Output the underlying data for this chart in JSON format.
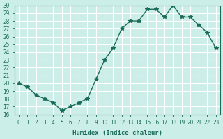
{
  "x": [
    0,
    1,
    2,
    3,
    4,
    5,
    6,
    7,
    8,
    9,
    10,
    11,
    12,
    13,
    14,
    15,
    16,
    17,
    18,
    19,
    20,
    21,
    22,
    23
  ],
  "y": [
    20,
    19.5,
    18.5,
    18,
    17.5,
    16.5,
    17,
    17.5,
    18,
    20.5,
    23,
    24.5,
    27,
    28,
    28,
    29.5,
    29.5,
    28.5,
    30,
    28.5,
    28.5,
    27.5,
    26.5,
    24.5
  ],
  "ylim": [
    16,
    30
  ],
  "yticks": [
    16,
    17,
    18,
    19,
    20,
    21,
    22,
    23,
    24,
    25,
    26,
    27,
    28,
    29,
    30
  ],
  "xticks": [
    0,
    1,
    2,
    3,
    4,
    5,
    6,
    7,
    8,
    9,
    10,
    11,
    12,
    13,
    14,
    15,
    16,
    17,
    18,
    19,
    20,
    21,
    22,
    23
  ],
  "xlabel": "Humidex (Indice chaleur)",
  "line_color": "#1a6b5a",
  "marker": "*",
  "marker_size": 4,
  "bg_color": "#cceee8",
  "grid_color": "#ffffff"
}
